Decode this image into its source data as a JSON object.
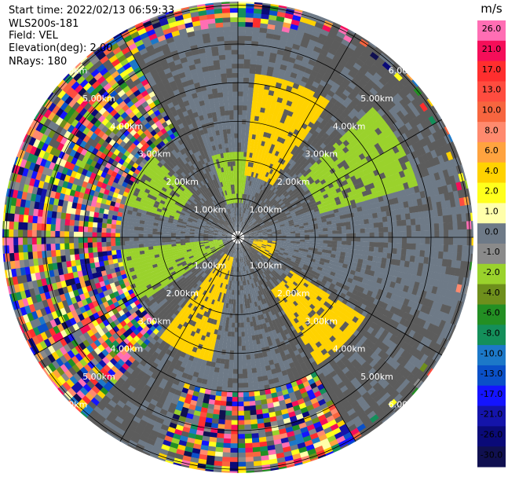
{
  "header": {
    "start_time": "Start time: 2022/02/13 06:59:33",
    "instrument": "WLS200s-181",
    "field": "Field: VEL",
    "elevation": "Elevation(deg): 2.00",
    "nrays": "NRays: 180"
  },
  "chart_data": {
    "type": "heatmap",
    "projection": "polar-ppi",
    "field": "VEL",
    "units": "m/s",
    "nrays": 180,
    "elevation_deg": 2.0,
    "range_rings_km": [
      1,
      2,
      3,
      4,
      5,
      6
    ],
    "ring_labels": [
      "1.00km",
      "2.00km",
      "3.00km",
      "4.00km",
      "5.00km",
      "6.00km"
    ],
    "max_range_km": 6.2,
    "colorbar": {
      "unit": "m/s",
      "ticks": [
        "26.0",
        "21.0",
        "17.0",
        "13.0",
        "10.0",
        "8.0",
        "6.0",
        "4.0",
        "2.0",
        "1.0",
        "0.0",
        "-1.0",
        "-2.0",
        "-4.0",
        "-6.0",
        "-8.0",
        "-10.0",
        "-13.0",
        "-17.0",
        "-21.0",
        "-26.0",
        "-30.0"
      ],
      "colors": [
        "#ff6eb4",
        "#f50e59",
        "#ff2e2e",
        "#ff4c3f",
        "#f7653f",
        "#ff8a6e",
        "#ffa33f",
        "#ffd200",
        "#ffff1c",
        "#ffffaa",
        "#6e7a87",
        "#8a8a8a",
        "#9ad22c",
        "#6e8f1c",
        "#238f23",
        "#148f5a",
        "#1c78c8",
        "#0a50c8",
        "#1414ff",
        "#1414aa",
        "#0a0a78",
        "#101050"
      ]
    },
    "background_colors": {
      "near_zero_light": "#6e7a87",
      "near_zero_dark": "#5c5c5c",
      "green": "#9ad22c",
      "yellow": "#ffd200"
    },
    "notes_regions": [
      {
        "azimuth_deg": 20,
        "range_km": [
          1.6,
          4.2
        ],
        "value": 3
      },
      {
        "azimuth_deg": 60,
        "range_km": [
          2.2,
          4.8
        ],
        "value": -2
      },
      {
        "azimuth_deg": 110,
        "range_km": [
          0.4,
          1.0
        ],
        "value": 3
      },
      {
        "azimuth_deg": 135,
        "range_km": [
          1.5,
          3.8
        ],
        "value": 3
      },
      {
        "azimuth_deg": 205,
        "range_km": [
          0.5,
          3.2
        ],
        "value": 3
      },
      {
        "azimuth_deg": 250,
        "range_km": [
          0.4,
          3.0
        ],
        "value": -2
      },
      {
        "azimuth_deg": 300,
        "range_km": [
          1.5,
          3.0
        ],
        "value": -2
      },
      {
        "azimuth_deg": 355,
        "range_km": [
          0.8,
          2.2
        ],
        "value": -2
      }
    ]
  }
}
